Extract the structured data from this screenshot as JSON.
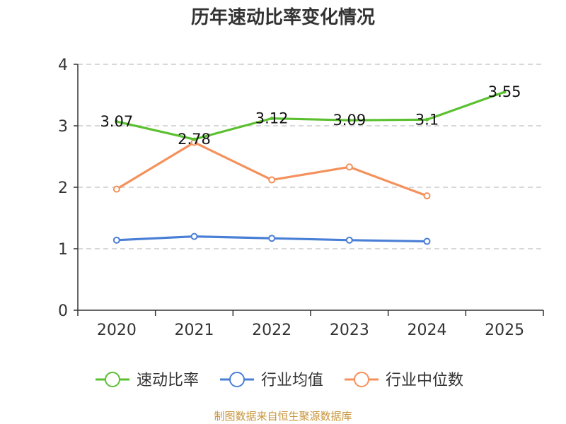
{
  "chart_data": {
    "type": "line",
    "title": "历年速动比率变化情况",
    "categories": [
      "2020",
      "2021",
      "2022",
      "2023",
      "2024",
      "2025"
    ],
    "ylim": [
      0,
      4
    ],
    "yticks": [
      0,
      1,
      2,
      3,
      4
    ],
    "grid": true,
    "legend_position": "bottom",
    "series": [
      {
        "name": "速动比率",
        "color": "#5bc02f",
        "values": [
          3.07,
          2.78,
          3.12,
          3.09,
          3.1,
          3.55
        ],
        "labels": [
          "3.07",
          "2.78",
          "3.12",
          "3.09",
          "3.1",
          "3.55"
        ]
      },
      {
        "name": "行业均值",
        "color": "#4a7fd6",
        "values": [
          1.14,
          1.2,
          1.17,
          1.14,
          1.12,
          null
        ]
      },
      {
        "name": "行业中位数",
        "color": "#f4915c",
        "values": [
          1.97,
          2.73,
          2.12,
          2.33,
          1.86,
          null
        ]
      }
    ],
    "source": "制图数据来自恒生聚源数据库"
  }
}
